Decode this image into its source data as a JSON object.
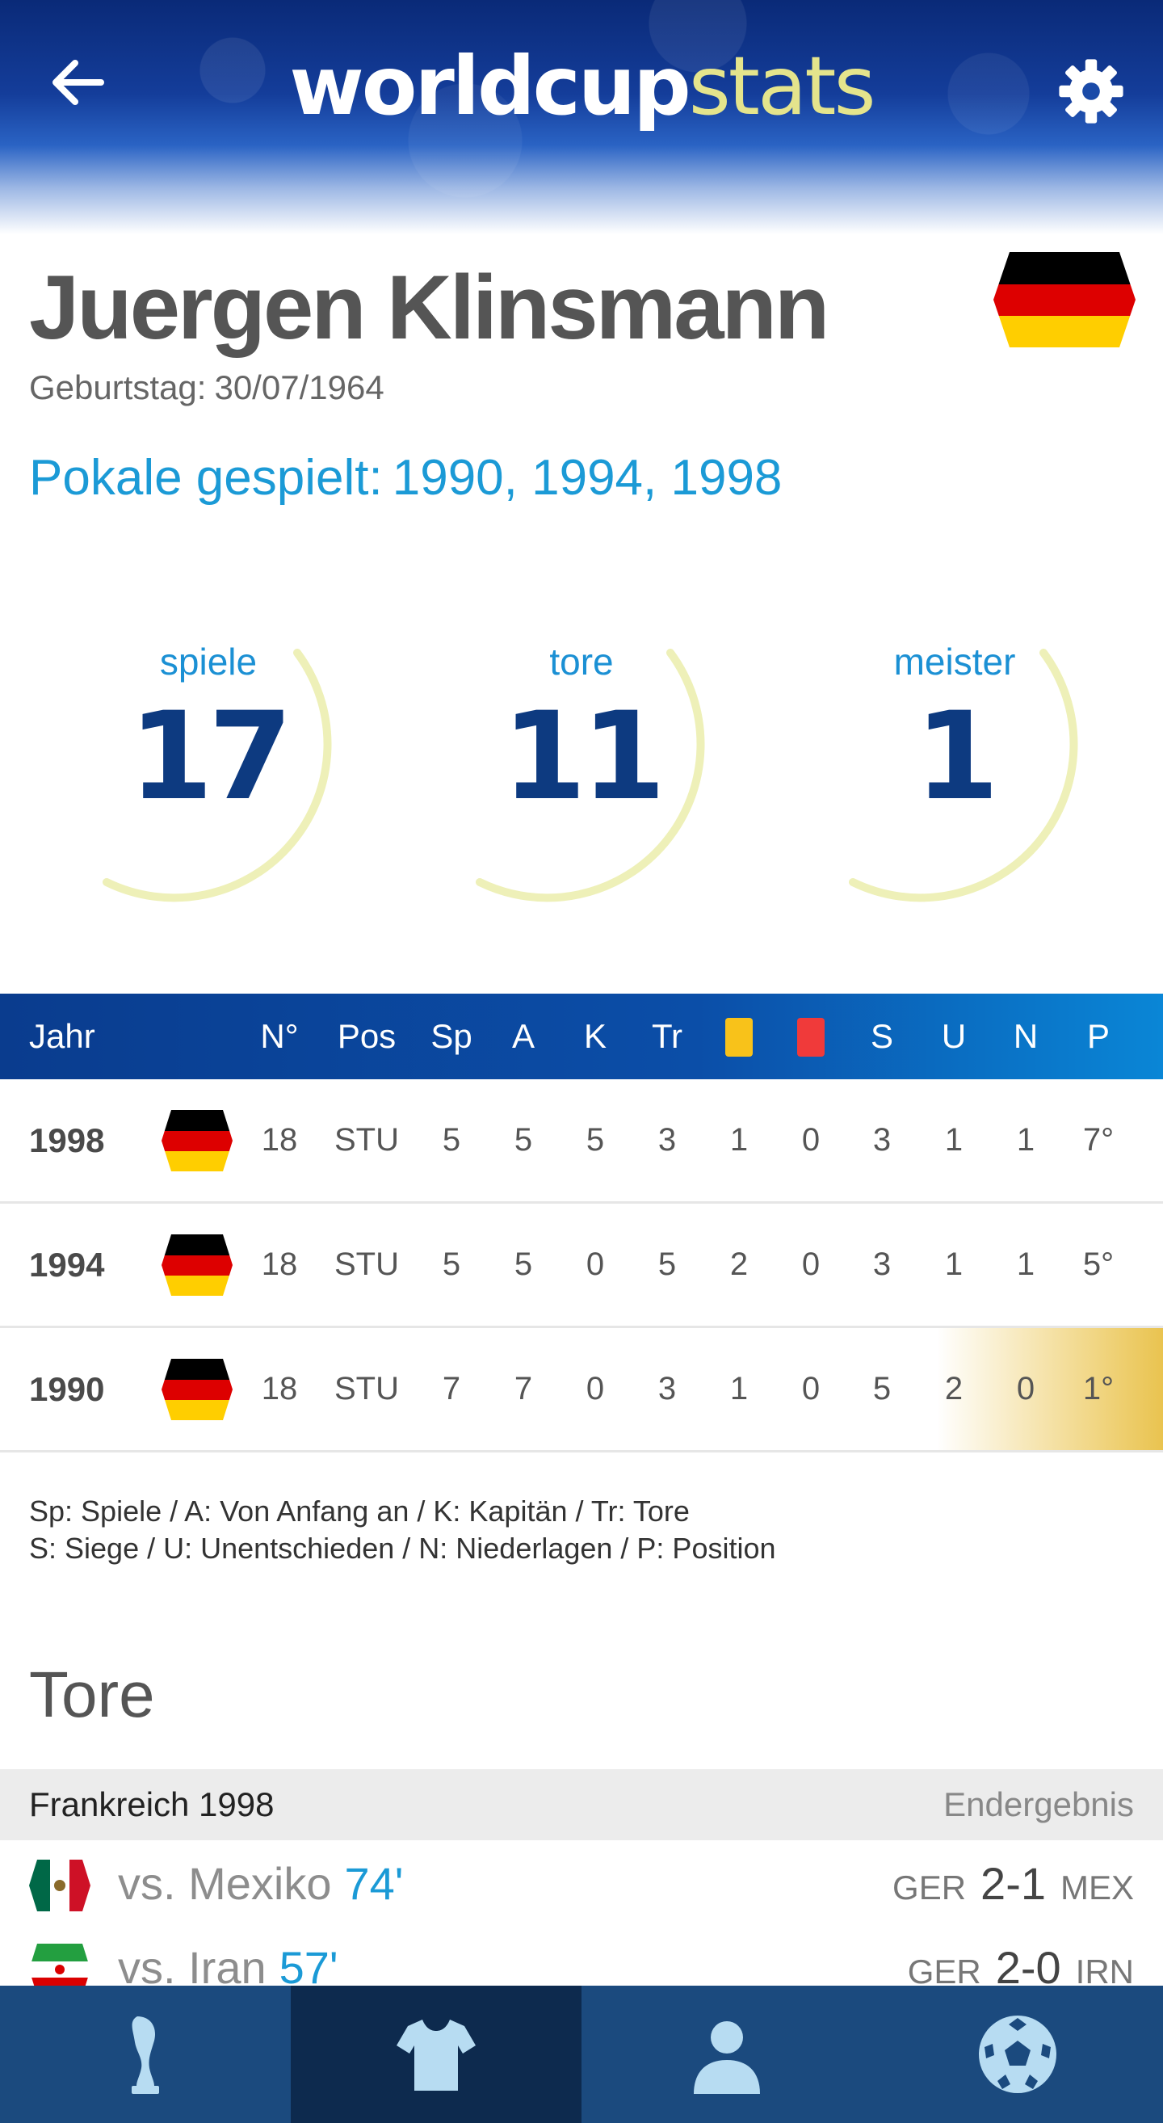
{
  "header": {
    "logo_part1": "worldcup",
    "logo_part2": "stats",
    "back_icon": "arrow-left-icon",
    "settings_icon": "gear-icon"
  },
  "player": {
    "name": "Juergen Klinsmann",
    "birthday_label": "Geburtstag:",
    "birthday": "30/07/1964",
    "tournaments_label": "Pokale gespielt:",
    "tournaments": "1990, 1994, 1998",
    "country_flag": "germany-flag-icon"
  },
  "stats": [
    {
      "label": "spiele",
      "value": "17"
    },
    {
      "label": "tore",
      "value": "11"
    },
    {
      "label": "meister",
      "value": "1"
    }
  ],
  "table": {
    "columns": [
      "Jahr",
      "N°",
      "Pos",
      "Sp",
      "A",
      "K",
      "Tr",
      "yellow-card",
      "red-card",
      "S",
      "U",
      "N",
      "P"
    ],
    "headers": {
      "jahr": "Jahr",
      "nr": "N°",
      "pos": "Pos",
      "sp": "Sp",
      "a": "A",
      "k": "K",
      "tr": "Tr",
      "s": "S",
      "u": "U",
      "n": "N",
      "p": "P"
    },
    "card_colors": {
      "yellow": "#f8c21a",
      "red": "#f03a3a"
    },
    "rows": [
      {
        "year": "1998",
        "nr": "18",
        "pos": "STU",
        "sp": "5",
        "a": "5",
        "k": "5",
        "tr": "3",
        "yc": "1",
        "rc": "0",
        "s": "3",
        "u": "1",
        "n": "1",
        "p": "7°"
      },
      {
        "year": "1994",
        "nr": "18",
        "pos": "STU",
        "sp": "5",
        "a": "5",
        "k": "0",
        "tr": "5",
        "yc": "2",
        "rc": "0",
        "s": "3",
        "u": "1",
        "n": "1",
        "p": "5°"
      },
      {
        "year": "1990",
        "nr": "18",
        "pos": "STU",
        "sp": "7",
        "a": "7",
        "k": "0",
        "tr": "3",
        "yc": "1",
        "rc": "0",
        "s": "5",
        "u": "2",
        "n": "0",
        "p": "1°",
        "champion": true
      }
    ]
  },
  "legend": {
    "line1": "Sp: Spiele / A: Von Anfang an / K: Kapitän / Tr: Tore",
    "line2": "S: Siege / U: Unentschieden / N: Niederlagen / P: Position"
  },
  "goals": {
    "title": "Tore",
    "tournament": "Frankreich 1998",
    "result_label": "Endergebnis",
    "items": [
      {
        "flag": "mexico-flag-icon",
        "opponent": "vs. Mexiko",
        "minute": "74'",
        "home": "GER",
        "score": "2-1",
        "away": "MEX"
      },
      {
        "flag": "iran-flag-icon",
        "opponent": "vs. Iran",
        "minute": "57'",
        "home": "GER",
        "score": "2-0",
        "away": "IRN"
      }
    ]
  },
  "bottom_nav": [
    {
      "icon": "trophy-icon",
      "active": false
    },
    {
      "icon": "jersey-icon",
      "active": true
    },
    {
      "icon": "player-icon",
      "active": false
    },
    {
      "icon": "soccer-ball-icon",
      "active": false
    }
  ],
  "colors": {
    "accent_blue": "#1b9ad6",
    "number_navy": "#0d3a80",
    "header_navy": "#0a2a78",
    "nav_bg": "#1b4a7e",
    "nav_active": "#0d2a4e",
    "ring": "#eef0b8"
  }
}
